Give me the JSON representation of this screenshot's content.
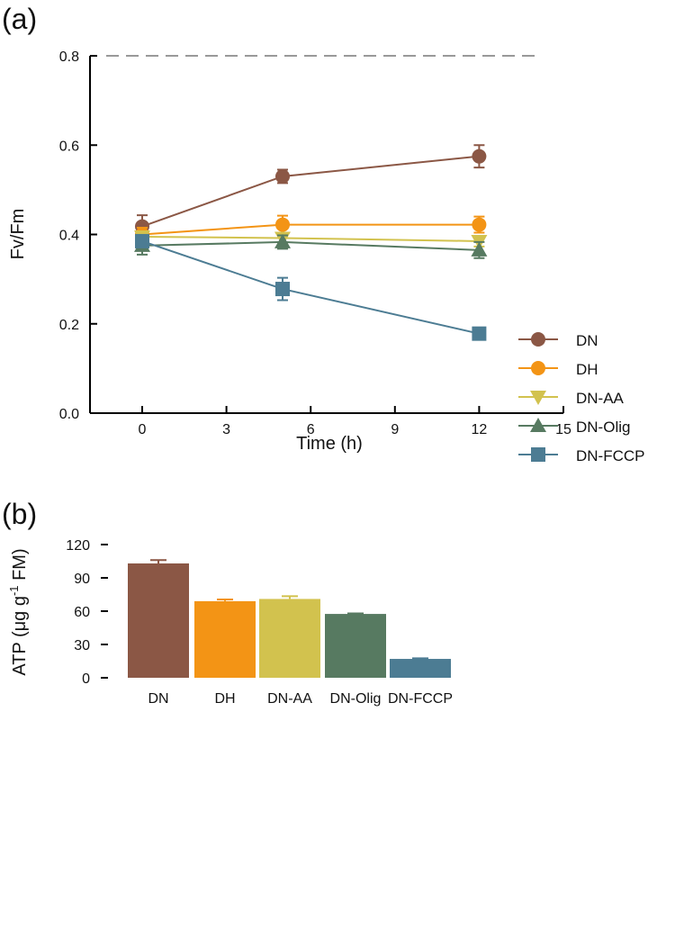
{
  "chart_data": [
    {
      "panel_label": "(a)",
      "type": "line",
      "xlabel": "Time (h)",
      "ylabel": "Fv/Fm",
      "xlim": [
        -2,
        15
      ],
      "ylim": [
        0,
        0.8
      ],
      "xticks": [
        "0",
        "3",
        "6",
        "9",
        "12",
        "15"
      ],
      "yticks": [
        "0.0",
        "0.2",
        "0.4",
        "0.6",
        "0.8"
      ],
      "reference_line": 0.8,
      "legend_placement": "right",
      "x": [
        0,
        5,
        12
      ],
      "series": [
        {
          "name": "DN",
          "marker": "circle",
          "color": "#8B5745",
          "values": [
            0.418,
            0.53,
            0.575
          ],
          "errors": [
            0.025,
            0.015,
            0.025
          ]
        },
        {
          "name": "DH",
          "marker": "circle",
          "color": "#F39415",
          "values": [
            0.4,
            0.422,
            0.422
          ],
          "errors": [
            0.015,
            0.02,
            0.018
          ]
        },
        {
          "name": "DN-AA",
          "marker": "triangle-down",
          "color": "#D2C24E",
          "values": [
            0.395,
            0.392,
            0.385
          ],
          "errors": [
            0.01,
            0.012,
            0.012
          ]
        },
        {
          "name": "DN-Olig",
          "marker": "triangle-up",
          "color": "#577A61",
          "values": [
            0.375,
            0.383,
            0.365
          ],
          "errors": [
            0.02,
            0.015,
            0.018
          ]
        },
        {
          "name": "DN-FCCP",
          "marker": "square",
          "color": "#4C7C93",
          "values": [
            0.385,
            0.278,
            0.178
          ],
          "errors": [
            0.01,
            0.025,
            0.008
          ]
        }
      ]
    },
    {
      "panel_label": "(b)",
      "type": "bar",
      "ylabel_main": "ATP (μg g",
      "ylabel_sup": "-1",
      "ylabel_tail": " FM)",
      "ylim": [
        0,
        120
      ],
      "yticks": [
        "0",
        "30",
        "60",
        "90",
        "120"
      ],
      "categories": [
        "DN",
        "DH",
        "DN-AA",
        "DN-Olig",
        "DN-FCCP"
      ],
      "values": [
        103,
        69,
        71,
        57.5,
        17
      ],
      "errors": [
        3,
        1.5,
        2.5,
        0.5,
        0.5
      ],
      "colors": [
        "#8B5745",
        "#F39415",
        "#D2C24E",
        "#577A61",
        "#4C7C93"
      ]
    }
  ]
}
